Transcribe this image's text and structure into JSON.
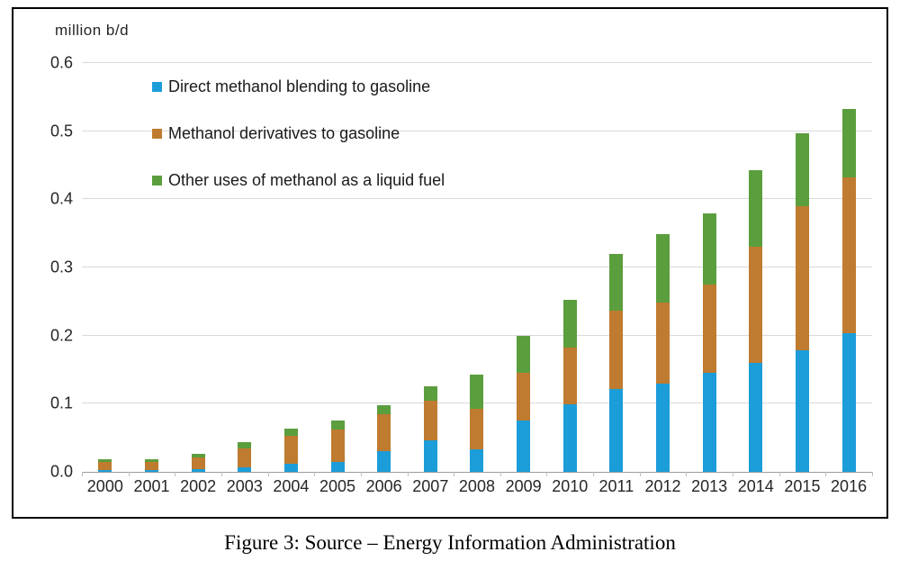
{
  "figure": {
    "unit_label": "million b/d",
    "caption": "Figure 3: Source – Energy Information Administration"
  },
  "chart_data": {
    "type": "bar",
    "stacked": true,
    "title": "",
    "xlabel": "",
    "ylabel": "million b/d",
    "ylim": [
      0,
      0.6
    ],
    "yticks": [
      0.0,
      0.1,
      0.2,
      0.3,
      0.4,
      0.5,
      0.6
    ],
    "ytick_labels": [
      "0.0",
      "0.1",
      "0.2",
      "0.3",
      "0.4",
      "0.5",
      "0.6"
    ],
    "grid": true,
    "legend_position": "top-left-inside",
    "categories": [
      "2000",
      "2001",
      "2002",
      "2003",
      "2004",
      "2005",
      "2006",
      "2007",
      "2008",
      "2009",
      "2010",
      "2011",
      "2012",
      "2013",
      "2014",
      "2015",
      "2016"
    ],
    "series": [
      {
        "name": "Direct methanol blending to gasoline",
        "color": "#1b9dd9",
        "values": [
          0.003,
          0.003,
          0.004,
          0.006,
          0.012,
          0.015,
          0.03,
          0.046,
          0.033,
          0.075,
          0.099,
          0.122,
          0.13,
          0.145,
          0.16,
          0.178,
          0.203
        ]
      },
      {
        "name": "Methanol derivatives to gasoline",
        "color": "#bf7b2f",
        "values": [
          0.012,
          0.012,
          0.017,
          0.028,
          0.041,
          0.047,
          0.054,
          0.058,
          0.06,
          0.07,
          0.083,
          0.115,
          0.118,
          0.13,
          0.17,
          0.212,
          0.229
        ]
      },
      {
        "name": "Other uses of methanol as a liquid fuel",
        "color": "#5b9e3d",
        "values": [
          0.004,
          0.004,
          0.006,
          0.01,
          0.011,
          0.014,
          0.014,
          0.021,
          0.05,
          0.055,
          0.071,
          0.083,
          0.101,
          0.104,
          0.113,
          0.107,
          0.101
        ]
      }
    ]
  }
}
